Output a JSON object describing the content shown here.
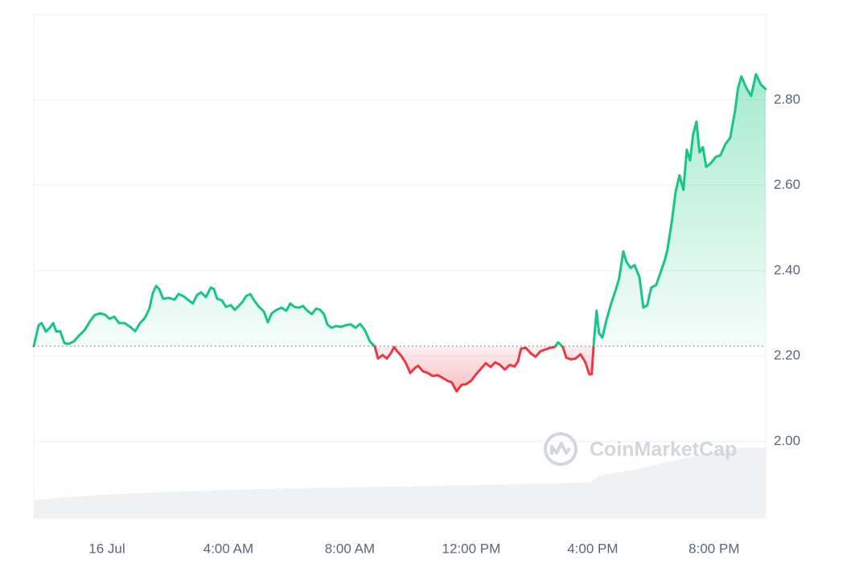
{
  "chart_data": {
    "type": "line",
    "x": [
      -2.41,
      -2.25,
      -2.15,
      -2.01,
      -1.88,
      -1.77,
      -1.67,
      -1.54,
      -1.4,
      -1.27,
      -1.09,
      -0.93,
      -0.74,
      -0.56,
      -0.4,
      -0.21,
      -0.05,
      0.08,
      0.24,
      0.4,
      0.58,
      0.77,
      0.93,
      1.09,
      1.25,
      1.4,
      1.51,
      1.62,
      1.72,
      1.85,
      2.04,
      2.23,
      2.36,
      2.52,
      2.7,
      2.83,
      2.97,
      3.1,
      3.26,
      3.42,
      3.52,
      3.63,
      3.79,
      3.92,
      4.08,
      4.21,
      4.34,
      4.48,
      4.58,
      4.72,
      4.85,
      5.01,
      5.17,
      5.3,
      5.43,
      5.59,
      5.75,
      5.91,
      6.04,
      6.17,
      6.33,
      6.46,
      6.6,
      6.75,
      6.89,
      7.02,
      7.15,
      7.26,
      7.39,
      7.55,
      7.71,
      7.87,
      8.03,
      8.19,
      8.34,
      8.5,
      8.66,
      8.82,
      8.93,
      9.08,
      9.22,
      9.35,
      9.46,
      9.56,
      9.7,
      9.85,
      9.99,
      10.15,
      10.25,
      10.41,
      10.57,
      10.73,
      10.89,
      11.05,
      11.21,
      11.36,
      11.52,
      11.68,
      11.84,
      12.0,
      12.16,
      12.32,
      12.48,
      12.64,
      12.79,
      12.95,
      13.11,
      13.27,
      13.43,
      13.54,
      13.64,
      13.8,
      13.96,
      14.12,
      14.28,
      14.44,
      14.6,
      14.75,
      14.86,
      15.02,
      15.13,
      15.28,
      15.44,
      15.6,
      15.76,
      15.89,
      15.97,
      16.03,
      16.08,
      16.13,
      16.21,
      16.32,
      16.45,
      16.61,
      16.77,
      16.87,
      17.01,
      17.11,
      17.25,
      17.38,
      17.54,
      17.67,
      17.8,
      17.93,
      18.09,
      18.23,
      18.36,
      18.46,
      18.62,
      18.73,
      18.86,
      18.99,
      19.1,
      19.21,
      19.31,
      19.42,
      19.52,
      19.63,
      19.74,
      19.89,
      20.05,
      20.21,
      20.37,
      20.53,
      20.69,
      20.79,
      20.9,
      21.06,
      21.22,
      21.38,
      21.54,
      21.7
    ],
    "values": [
      2.223,
      2.272,
      2.277,
      2.257,
      2.266,
      2.277,
      2.257,
      2.258,
      2.23,
      2.228,
      2.234,
      2.247,
      2.26,
      2.281,
      2.296,
      2.3,
      2.296,
      2.287,
      2.292,
      2.277,
      2.277,
      2.268,
      2.258,
      2.277,
      2.289,
      2.311,
      2.347,
      2.364,
      2.357,
      2.334,
      2.336,
      2.332,
      2.345,
      2.34,
      2.33,
      2.323,
      2.343,
      2.349,
      2.338,
      2.36,
      2.357,
      2.334,
      2.33,
      2.315,
      2.319,
      2.308,
      2.317,
      2.328,
      2.34,
      2.345,
      2.33,
      2.315,
      2.304,
      2.279,
      2.3,
      2.308,
      2.313,
      2.306,
      2.323,
      2.315,
      2.313,
      2.317,
      2.306,
      2.298,
      2.311,
      2.308,
      2.298,
      2.274,
      2.266,
      2.27,
      2.268,
      2.272,
      2.274,
      2.266,
      2.275,
      2.26,
      2.234,
      2.223,
      2.194,
      2.202,
      2.194,
      2.206,
      2.221,
      2.211,
      2.2,
      2.183,
      2.16,
      2.172,
      2.177,
      2.164,
      2.16,
      2.153,
      2.155,
      2.149,
      2.142,
      2.138,
      2.117,
      2.132,
      2.134,
      2.142,
      2.157,
      2.17,
      2.183,
      2.174,
      2.185,
      2.179,
      2.168,
      2.179,
      2.175,
      2.187,
      2.217,
      2.219,
      2.206,
      2.198,
      2.211,
      2.215,
      2.219,
      2.221,
      2.232,
      2.221,
      2.196,
      2.192,
      2.194,
      2.204,
      2.185,
      2.157,
      2.157,
      2.223,
      2.266,
      2.306,
      2.253,
      2.243,
      2.283,
      2.323,
      2.357,
      2.381,
      2.445,
      2.421,
      2.406,
      2.413,
      2.385,
      2.313,
      2.319,
      2.36,
      2.366,
      2.394,
      2.421,
      2.447,
      2.521,
      2.583,
      2.623,
      2.589,
      2.683,
      2.658,
      2.719,
      2.749,
      2.677,
      2.689,
      2.643,
      2.651,
      2.666,
      2.67,
      2.696,
      2.711,
      2.774,
      2.828,
      2.855,
      2.828,
      2.809,
      2.86,
      2.836,
      2.825
    ],
    "baseline": 2.223,
    "up_color": "#16c784",
    "down_color": "#ea3943",
    "volume": {
      "x": [
        -2.41,
        -0.87,
        1.77,
        4.42,
        7.07,
        9.72,
        12.37,
        15.02,
        15.95,
        16.21,
        17.67,
        18.99,
        20.32,
        20.98,
        21.7
      ],
      "values": [
        1.862,
        1.872,
        1.881,
        1.887,
        1.891,
        1.894,
        1.898,
        1.902,
        1.904,
        1.919,
        1.938,
        1.96,
        1.979,
        1.985,
        1.985
      ],
      "color": "#eff1f4"
    },
    "xlim": [
      -2.41,
      21.7
    ],
    "ylim": [
      1.82,
      3.0
    ],
    "xticks": [
      {
        "value": 0,
        "label": "16 Jul"
      },
      {
        "value": 4,
        "label": "4:00 AM"
      },
      {
        "value": 8,
        "label": "8:00 AM"
      },
      {
        "value": 12,
        "label": "12:00 PM"
      },
      {
        "value": 16,
        "label": "4:00 PM"
      },
      {
        "value": 20,
        "label": "8:00 PM"
      }
    ],
    "yticks": [
      {
        "value": 2,
        "label": "2.00"
      },
      {
        "value": 2.2,
        "label": "2.20"
      },
      {
        "value": 2.4,
        "label": "2.40"
      },
      {
        "value": 2.6,
        "label": "2.60"
      },
      {
        "value": 2.8,
        "label": "2.80"
      }
    ],
    "grid": true,
    "watermark": "CoinMarketCap"
  }
}
